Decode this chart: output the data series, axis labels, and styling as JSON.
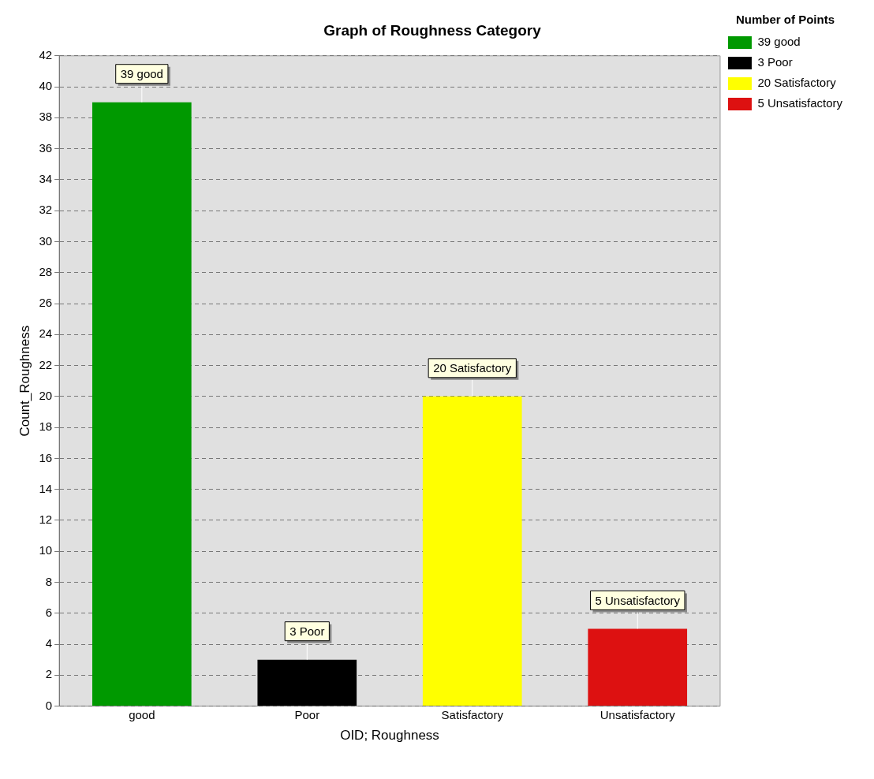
{
  "chart_data": {
    "type": "bar",
    "title": "Graph of Roughness Category",
    "xlabel": "OID; Roughness",
    "ylabel": "Count_Roughness",
    "legend_title": "Number of Points",
    "categories": [
      "good",
      "Poor",
      "Satisfactory",
      "Unsatisfactory"
    ],
    "series": [
      {
        "name": "39 good",
        "color": "#009900",
        "values": [
          39,
          null,
          null,
          null
        ],
        "value_labels": [
          "39 good",
          null,
          null,
          null
        ]
      },
      {
        "name": "3 Poor",
        "color": "#000000",
        "values": [
          null,
          3,
          null,
          null
        ],
        "value_labels": [
          null,
          "3 Poor",
          null,
          null
        ]
      },
      {
        "name": "20 Satisfactory",
        "color": "#ffff00",
        "values": [
          null,
          null,
          20,
          null
        ],
        "value_labels": [
          null,
          null,
          "20 Satisfactory",
          null
        ]
      },
      {
        "name": "5 Unsatisfactory",
        "color": "#dd1111",
        "values": [
          null,
          null,
          null,
          5
        ],
        "value_labels": [
          null,
          null,
          null,
          "5 Unsatisfactory"
        ]
      }
    ],
    "ylim": [
      0,
      42
    ],
    "yticks": [
      0,
      2,
      4,
      6,
      8,
      10,
      12,
      14,
      16,
      18,
      20,
      22,
      24,
      26,
      28,
      30,
      32,
      34,
      36,
      38,
      40,
      42
    ],
    "grid": "y",
    "legend": "top right"
  }
}
